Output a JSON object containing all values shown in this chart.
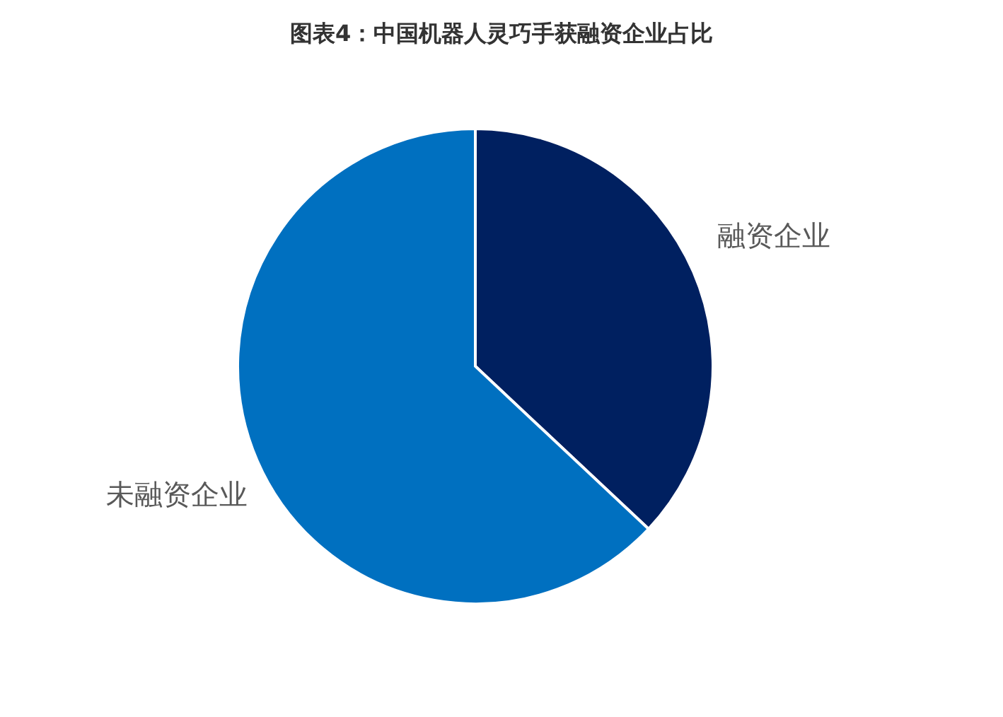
{
  "chart_data": {
    "type": "pie",
    "title": "图表4：中国机器人灵巧手获融资企业占比",
    "categories": [
      "融资企业",
      "未融资企业"
    ],
    "values": [
      37,
      63
    ],
    "colors": [
      "#002060",
      "#0070c0"
    ]
  }
}
